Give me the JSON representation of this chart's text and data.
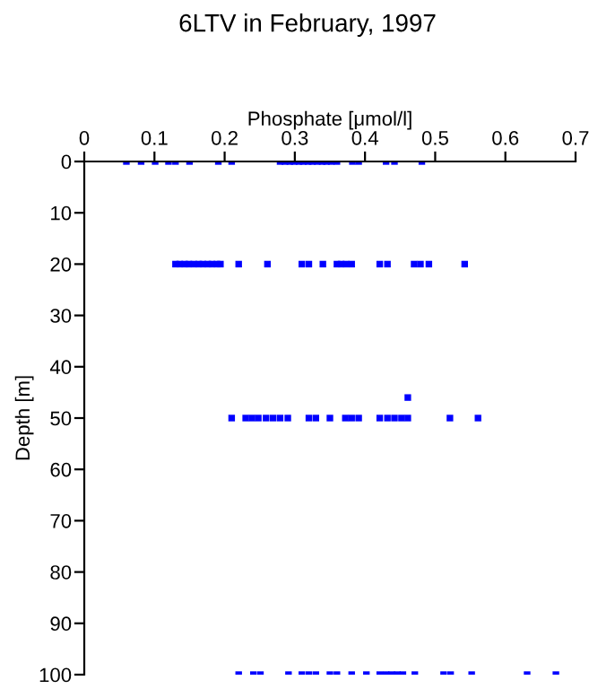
{
  "chart_data": {
    "type": "scatter",
    "title": "6LTV in February, 1997",
    "xlabel": "Phosphate [μmol/l]",
    "ylabel": "Depth [m]",
    "series": [
      {
        "color": "#0000ff",
        "x": [
          0.06,
          0.081,
          0.101,
          0.12,
          0.13,
          0.15,
          0.191,
          0.21,
          0.279,
          0.286,
          0.293,
          0.299,
          0.306,
          0.312,
          0.319,
          0.325,
          0.332,
          0.339,
          0.345,
          0.352,
          0.36,
          0.382,
          0.391,
          0.43,
          0.442,
          0.481
        ],
        "values": [
          0,
          0,
          0,
          0,
          0,
          0,
          0,
          0,
          0,
          0,
          0,
          0,
          0,
          0,
          0,
          0,
          0,
          0,
          0,
          0,
          0,
          0,
          0,
          0,
          0,
          0
        ]
      },
      {
        "color": "#0000ff",
        "x": [
          0.13,
          0.136,
          0.143,
          0.149,
          0.156,
          0.163,
          0.169,
          0.176,
          0.182,
          0.189,
          0.194,
          0.22,
          0.261,
          0.31,
          0.32,
          0.34,
          0.36,
          0.366,
          0.373,
          0.381,
          0.421,
          0.432,
          0.47,
          0.479,
          0.491,
          0.542
        ],
        "values": [
          20,
          20,
          20,
          20,
          20,
          20,
          20,
          20,
          20,
          20,
          20,
          20,
          20,
          20,
          20,
          20,
          20,
          20,
          20,
          20,
          20,
          20,
          20,
          20,
          20,
          20
        ]
      },
      {
        "color": "#0000ff",
        "x": [
          0.461,
          0.21,
          0.23,
          0.239,
          0.248,
          0.259,
          0.269,
          0.279,
          0.29,
          0.32,
          0.33,
          0.35,
          0.372,
          0.381,
          0.391,
          0.421,
          0.432,
          0.442,
          0.452,
          0.461,
          0.521,
          0.561
        ],
        "values": [
          46,
          50,
          50,
          50,
          50,
          50,
          50,
          50,
          50,
          50,
          50,
          50,
          50,
          50,
          50,
          50,
          50,
          50,
          50,
          50,
          50,
          50
        ]
      },
      {
        "color": "#0000ff",
        "x": [
          0.22,
          0.241,
          0.251,
          0.291,
          0.31,
          0.32,
          0.33,
          0.35,
          0.36,
          0.381,
          0.402,
          0.421,
          0.43,
          0.438,
          0.446,
          0.454,
          0.471,
          0.512,
          0.522,
          0.552,
          0.631,
          0.672
        ],
        "values": [
          100,
          100,
          100,
          100,
          100,
          100,
          100,
          100,
          100,
          100,
          100,
          100,
          100,
          100,
          100,
          100,
          100,
          100,
          100,
          100,
          100,
          100
        ]
      }
    ],
    "xlim": [
      0,
      0.7
    ],
    "xticks": [
      0,
      0.1,
      0.2,
      0.3,
      0.4,
      0.5,
      0.6,
      0.7
    ],
    "ylim": [
      100,
      0
    ],
    "yticks": [
      0,
      10,
      20,
      30,
      40,
      50,
      60,
      70,
      80,
      90,
      100
    ],
    "marker": "square",
    "grid": false,
    "legend": false
  }
}
